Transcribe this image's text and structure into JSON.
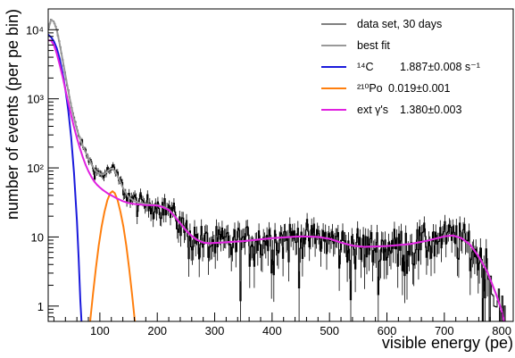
{
  "chart_data": {
    "type": "line",
    "title": "",
    "xlabel": "visible energy (pe)",
    "ylabel": "number of events (per pe bin)",
    "xlim": [
      10,
      820
    ],
    "ylim": [
      0.6,
      20000
    ],
    "yscale": "log",
    "grid": false,
    "legend_position": "top-right",
    "x_ticks": [
      100,
      200,
      300,
      400,
      500,
      600,
      700,
      800
    ],
    "x_tick_labels": [
      "100",
      "200",
      "300",
      "400",
      "500",
      "600",
      "700",
      "800"
    ],
    "y_ticks": [
      1,
      10,
      100,
      1000,
      10000
    ],
    "y_tick_labels": [
      "1",
      "10",
      "10²",
      "10³",
      "10⁴"
    ],
    "legend": [
      {
        "key": "data",
        "label": "data set, 30 days"
      },
      {
        "key": "fit",
        "label": "best fit"
      },
      {
        "key": "c14",
        "label_main": "¹⁴C",
        "label_value": "1.887±0.008 s⁻¹"
      },
      {
        "key": "po210",
        "label_main": "²¹⁰Po",
        "label_value": "0.019±0.001"
      },
      {
        "key": "ext",
        "label_main": "ext γ's",
        "label_value": "1.380±0.003"
      }
    ],
    "series": [
      {
        "key": "fit",
        "name": "best fit",
        "color": "#999999",
        "points": [
          [
            10,
            10000
          ],
          [
            15,
            14000
          ],
          [
            20,
            13000
          ],
          [
            25,
            10000
          ],
          [
            30,
            6200
          ],
          [
            35,
            3700
          ],
          [
            40,
            2200
          ],
          [
            45,
            1300
          ],
          [
            50,
            800
          ],
          [
            55,
            520
          ],
          [
            60,
            360
          ],
          [
            65,
            270
          ],
          [
            70,
            210
          ],
          [
            75,
            170
          ],
          [
            80,
            140
          ],
          [
            85,
            115
          ],
          [
            90,
            97
          ],
          [
            95,
            87
          ],
          [
            100,
            82
          ],
          [
            105,
            80
          ],
          [
            110,
            84
          ],
          [
            115,
            92
          ],
          [
            120,
            98
          ],
          [
            125,
            92
          ],
          [
            130,
            78
          ],
          [
            135,
            64
          ],
          [
            140,
            52
          ],
          [
            145,
            44
          ],
          [
            150,
            38
          ],
          [
            160,
            33
          ],
          [
            170,
            31
          ],
          [
            180,
            30
          ],
          [
            190,
            29.5
          ],
          [
            200,
            29
          ],
          [
            210,
            27.5
          ],
          [
            220,
            25
          ],
          [
            230,
            20.5
          ],
          [
            240,
            16
          ],
          [
            250,
            12.6
          ],
          [
            260,
            10.4
          ],
          [
            270,
            9.1
          ],
          [
            280,
            8.4
          ],
          [
            290,
            8.1
          ],
          [
            300,
            8.2
          ],
          [
            350,
            8.7
          ],
          [
            400,
            9.6
          ],
          [
            450,
            10.2
          ],
          [
            480,
            10
          ],
          [
            500,
            9.4
          ],
          [
            520,
            8.3
          ],
          [
            540,
            7.5
          ],
          [
            560,
            7.2
          ],
          [
            600,
            7.4
          ],
          [
            640,
            7.9
          ],
          [
            670,
            8.8
          ],
          [
            700,
            10.2
          ],
          [
            715,
            10.5
          ],
          [
            730,
            9.6
          ],
          [
            745,
            7.7
          ],
          [
            760,
            5.2
          ],
          [
            775,
            3.1
          ],
          [
            790,
            1.5
          ],
          [
            800,
            0.85
          ],
          [
            804,
            0.6
          ]
        ]
      },
      {
        "key": "c14",
        "name": "¹⁴C",
        "color": "#1a1adc",
        "points": [
          [
            10,
            8500
          ],
          [
            15,
            7800
          ],
          [
            20,
            6800
          ],
          [
            25,
            5400
          ],
          [
            30,
            3800
          ],
          [
            35,
            2400
          ],
          [
            40,
            1350
          ],
          [
            45,
            680
          ],
          [
            50,
            280
          ],
          [
            55,
            85
          ],
          [
            60,
            17
          ],
          [
            63,
            5
          ],
          [
            66,
            1.2
          ],
          [
            68,
            0.6
          ]
        ]
      },
      {
        "key": "po210",
        "name": "²¹⁰Po",
        "color": "#ff7f0e",
        "points": [
          [
            83,
            0.6
          ],
          [
            88,
            1.5
          ],
          [
            93,
            3.5
          ],
          [
            98,
            7.5
          ],
          [
            103,
            14
          ],
          [
            108,
            23
          ],
          [
            113,
            34
          ],
          [
            118,
            43
          ],
          [
            122,
            46
          ],
          [
            126,
            43
          ],
          [
            131,
            34
          ],
          [
            136,
            23
          ],
          [
            141,
            14
          ],
          [
            146,
            7.5
          ],
          [
            151,
            3.5
          ],
          [
            156,
            1.5
          ],
          [
            161,
            0.6
          ]
        ]
      },
      {
        "key": "ext",
        "name": "ext γ's",
        "color": "#e020e0",
        "points": [
          [
            10,
            7000
          ],
          [
            15,
            7000
          ],
          [
            20,
            6000
          ],
          [
            25,
            4500
          ],
          [
            30,
            3100
          ],
          [
            35,
            2100
          ],
          [
            40,
            1350
          ],
          [
            45,
            880
          ],
          [
            50,
            580
          ],
          [
            55,
            390
          ],
          [
            60,
            270
          ],
          [
            65,
            195
          ],
          [
            70,
            145
          ],
          [
            75,
            112
          ],
          [
            80,
            90
          ],
          [
            85,
            75
          ],
          [
            90,
            64
          ],
          [
            95,
            57
          ],
          [
            100,
            52
          ],
          [
            105,
            48
          ],
          [
            110,
            45
          ],
          [
            115,
            42
          ],
          [
            120,
            40
          ],
          [
            130,
            36
          ],
          [
            140,
            33
          ],
          [
            150,
            31
          ],
          [
            160,
            30
          ],
          [
            170,
            29.5
          ],
          [
            180,
            29
          ],
          [
            190,
            28.8
          ],
          [
            200,
            28.5
          ],
          [
            210,
            27
          ],
          [
            220,
            24.5
          ],
          [
            230,
            20
          ],
          [
            240,
            15.8
          ],
          [
            250,
            12.4
          ],
          [
            260,
            10.3
          ],
          [
            270,
            9
          ],
          [
            280,
            8.3
          ],
          [
            290,
            8.1
          ],
          [
            300,
            8.2
          ],
          [
            350,
            8.7
          ],
          [
            400,
            9.6
          ],
          [
            450,
            10.2
          ],
          [
            480,
            10
          ],
          [
            500,
            9.4
          ],
          [
            520,
            8.3
          ],
          [
            540,
            7.5
          ],
          [
            560,
            7.2
          ],
          [
            600,
            7.4
          ],
          [
            640,
            7.9
          ],
          [
            670,
            8.8
          ],
          [
            700,
            10.2
          ],
          [
            715,
            10.5
          ],
          [
            730,
            9.6
          ],
          [
            745,
            7.7
          ],
          [
            760,
            5.2
          ],
          [
            775,
            3.1
          ],
          [
            790,
            1.5
          ],
          [
            800,
            0.85
          ],
          [
            804,
            0.6
          ]
        ]
      }
    ],
    "data_series": {
      "key": "data",
      "name": "data set, 30 days",
      "color": "#000000",
      "bin_start": 10,
      "bin_width": 2
    }
  }
}
